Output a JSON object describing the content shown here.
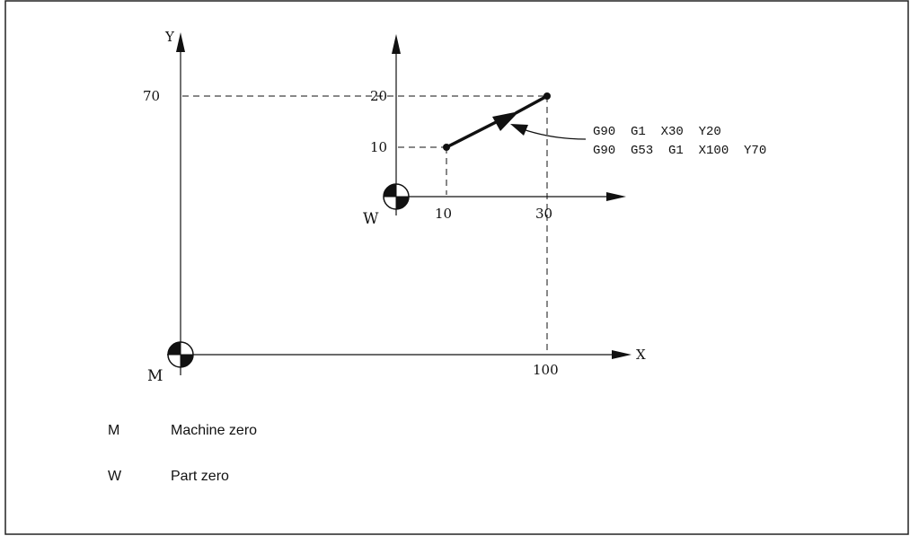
{
  "diagram": {
    "machine_axes": {
      "y_label": "Y",
      "x_label": "X",
      "y_tick": "70",
      "x_tick": "100",
      "origin_label": "M"
    },
    "part_axes": {
      "y_ticks": [
        "20",
        "10"
      ],
      "x_ticks": [
        "10",
        "30"
      ],
      "origin_label": "W"
    },
    "annotation": {
      "line1": "G90  G1  X30  Y20",
      "line2": "G90  G53  G1  X100  Y70"
    }
  },
  "legend": [
    {
      "key": "M",
      "text": "Machine zero"
    },
    {
      "key": "W",
      "text": "Part zero"
    }
  ],
  "colors": {
    "line": "#111111",
    "frame": "#222222"
  }
}
